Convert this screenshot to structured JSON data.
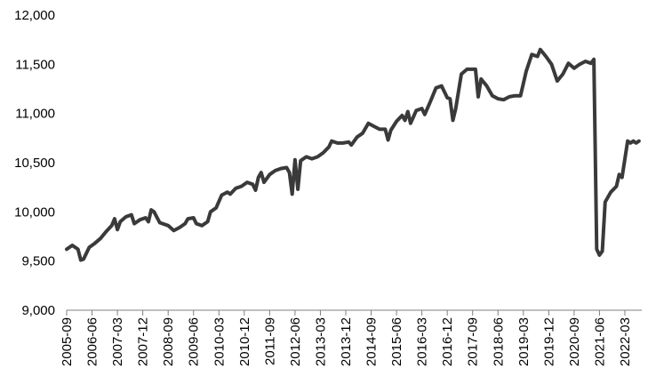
{
  "chart_data": {
    "type": "line",
    "title": "",
    "xlabel": "",
    "ylabel": "",
    "ylim": [
      9000,
      12000
    ],
    "yticks": [
      9000,
      9500,
      10000,
      10500,
      11000,
      11500,
      12000
    ],
    "ytick_labels": [
      "9,000",
      "9,500",
      "10,000",
      "10,500",
      "11,000",
      "11,500",
      "12,000"
    ],
    "x_start": "2005-09",
    "x_end": "2022-09",
    "xtick_labels": [
      "2005-09",
      "2006-06",
      "2007-03",
      "2007-12",
      "2008-09",
      "2009-06",
      "2010-03",
      "2010-12",
      "2011-09",
      "2012-06",
      "2013-03",
      "2013-12",
      "2014-09",
      "2015-06",
      "2016-03",
      "2016-12",
      "2017-09",
      "2018-06",
      "2019-03",
      "2019-12",
      "2020-09",
      "2021-06",
      "2022-03"
    ],
    "grid": false,
    "legend": "none",
    "line_color": "#3a3a3a",
    "series": [
      {
        "points": [
          [
            "2005-09",
            9620
          ],
          [
            "2005-11",
            9660
          ],
          [
            "2006-01",
            9620
          ],
          [
            "2006-02",
            9510
          ],
          [
            "2006-03",
            9520
          ],
          [
            "2006-05",
            9640
          ],
          [
            "2006-07",
            9680
          ],
          [
            "2006-09",
            9730
          ],
          [
            "2006-11",
            9800
          ],
          [
            "2007-01",
            9860
          ],
          [
            "2007-02",
            9930
          ],
          [
            "2007-03",
            9820
          ],
          [
            "2007-04",
            9900
          ],
          [
            "2007-06",
            9950
          ],
          [
            "2007-08",
            9970
          ],
          [
            "2007-09",
            9880
          ],
          [
            "2007-11",
            9920
          ],
          [
            "2008-01",
            9940
          ],
          [
            "2008-02",
            9900
          ],
          [
            "2008-03",
            10020
          ],
          [
            "2008-04",
            10000
          ],
          [
            "2008-06",
            9890
          ],
          [
            "2008-09",
            9860
          ],
          [
            "2008-11",
            9810
          ],
          [
            "2009-01",
            9840
          ],
          [
            "2009-03",
            9880
          ],
          [
            "2009-04",
            9930
          ],
          [
            "2009-06",
            9940
          ],
          [
            "2009-07",
            9880
          ],
          [
            "2009-09",
            9860
          ],
          [
            "2009-11",
            9900
          ],
          [
            "2009-12",
            10000
          ],
          [
            "2010-02",
            10040
          ],
          [
            "2010-04",
            10170
          ],
          [
            "2010-06",
            10200
          ],
          [
            "2010-07",
            10180
          ],
          [
            "2010-09",
            10240
          ],
          [
            "2010-11",
            10260
          ],
          [
            "2011-01",
            10300
          ],
          [
            "2011-03",
            10280
          ],
          [
            "2011-04",
            10220
          ],
          [
            "2011-05",
            10350
          ],
          [
            "2011-06",
            10400
          ],
          [
            "2011-07",
            10300
          ],
          [
            "2011-09",
            10380
          ],
          [
            "2011-11",
            10420
          ],
          [
            "2012-01",
            10440
          ],
          [
            "2012-03",
            10450
          ],
          [
            "2012-04",
            10400
          ],
          [
            "2012-05",
            10180
          ],
          [
            "2012-06",
            10530
          ],
          [
            "2012-07",
            10230
          ],
          [
            "2012-08",
            10520
          ],
          [
            "2012-10",
            10560
          ],
          [
            "2012-12",
            10540
          ],
          [
            "2013-02",
            10560
          ],
          [
            "2013-04",
            10600
          ],
          [
            "2013-06",
            10660
          ],
          [
            "2013-07",
            10720
          ],
          [
            "2013-09",
            10700
          ],
          [
            "2013-11",
            10700
          ],
          [
            "2014-01",
            10710
          ],
          [
            "2014-02",
            10680
          ],
          [
            "2014-04",
            10760
          ],
          [
            "2014-06",
            10800
          ],
          [
            "2014-08",
            10900
          ],
          [
            "2014-10",
            10870
          ],
          [
            "2014-12",
            10840
          ],
          [
            "2015-02",
            10840
          ],
          [
            "2015-03",
            10730
          ],
          [
            "2015-04",
            10830
          ],
          [
            "2015-06",
            10920
          ],
          [
            "2015-08",
            10980
          ],
          [
            "2015-09",
            10930
          ],
          [
            "2015-10",
            11020
          ],
          [
            "2015-11",
            10900
          ],
          [
            "2016-01",
            11030
          ],
          [
            "2016-03",
            11050
          ],
          [
            "2016-04",
            10990
          ],
          [
            "2016-06",
            11120
          ],
          [
            "2016-08",
            11260
          ],
          [
            "2016-10",
            11280
          ],
          [
            "2016-12",
            11160
          ],
          [
            "2017-01",
            11150
          ],
          [
            "2017-02",
            10930
          ],
          [
            "2017-03",
            11050
          ],
          [
            "2017-05",
            11400
          ],
          [
            "2017-07",
            11450
          ],
          [
            "2017-10",
            11450
          ],
          [
            "2017-11",
            11170
          ],
          [
            "2017-12",
            11350
          ],
          [
            "2018-02",
            11280
          ],
          [
            "2018-04",
            11180
          ],
          [
            "2018-06",
            11150
          ],
          [
            "2018-08",
            11140
          ],
          [
            "2018-10",
            11170
          ],
          [
            "2018-12",
            11180
          ],
          [
            "2019-02",
            11180
          ],
          [
            "2019-04",
            11430
          ],
          [
            "2019-06",
            11600
          ],
          [
            "2019-08",
            11580
          ],
          [
            "2019-09",
            11650
          ],
          [
            "2019-11",
            11580
          ],
          [
            "2020-01",
            11500
          ],
          [
            "2020-03",
            11330
          ],
          [
            "2020-05",
            11400
          ],
          [
            "2020-07",
            11510
          ],
          [
            "2020-09",
            11460
          ],
          [
            "2020-11",
            11500
          ],
          [
            "2021-01",
            11530
          ],
          [
            "2021-03",
            11510
          ],
          [
            "2021-04",
            11550
          ],
          [
            "2021-05",
            9620
          ],
          [
            "2021-06",
            9560
          ],
          [
            "2021-07",
            9600
          ],
          [
            "2021-08",
            10100
          ],
          [
            "2021-10",
            10200
          ],
          [
            "2021-12",
            10260
          ],
          [
            "2022-01",
            10380
          ],
          [
            "2022-02",
            10350
          ],
          [
            "2022-04",
            10720
          ],
          [
            "2022-05",
            10700
          ],
          [
            "2022-06",
            10720
          ],
          [
            "2022-07",
            10700
          ],
          [
            "2022-08",
            10720
          ]
        ]
      }
    ]
  }
}
